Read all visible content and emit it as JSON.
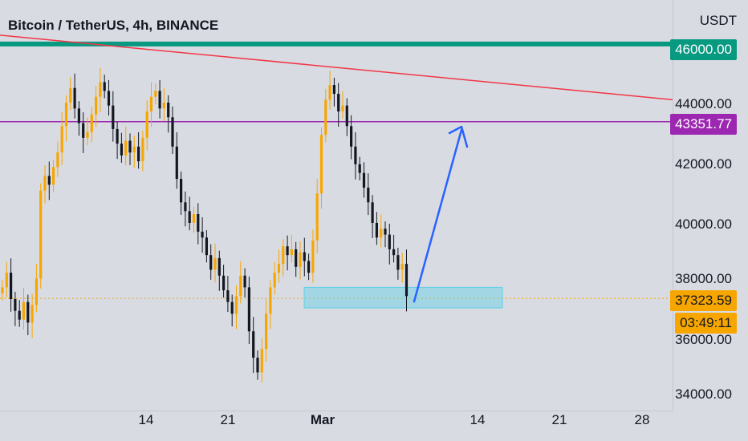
{
  "header": {
    "title": "Bitcoin / TetherUS, 4h, BINANCE",
    "currency": "USDT"
  },
  "price_axis": {
    "ticks": [
      "46000.00",
      "44000.00",
      "42000.00",
      "40000.00",
      "38000.00",
      "36000.00",
      "34000.00"
    ]
  },
  "time_axis": {
    "ticks": [
      "14",
      "21",
      "Mar",
      "14",
      "21",
      "28"
    ]
  },
  "price_tags": {
    "resistance": "46000.00",
    "level": "43351.77",
    "last_price": "37323.59",
    "countdown": "03:49:11"
  },
  "colors": {
    "background": "#d9dbe2",
    "candle_up": "#f7a600",
    "candle_down": "#131722",
    "resistance_line": "#089981",
    "level_line": "#9c27b0",
    "trend_line": "#f23645",
    "support_zone": "#5fd0e6",
    "projection_arrow": "#2962ff"
  },
  "chart_data": {
    "type": "candlestick",
    "title": "Bitcoin / TetherUS, 4h, BINANCE",
    "ylabel": "USDT",
    "ylim": [
      33500,
      47500
    ],
    "x_ticks": [
      "14",
      "21",
      "Mar",
      "14",
      "21",
      "28"
    ],
    "horizontal_levels": [
      {
        "price": 46000,
        "color": "#089981"
      },
      {
        "price": 43351.77,
        "color": "#9c27b0"
      },
      {
        "price": 37323.59,
        "color": "#f7a600",
        "style": "dotted"
      }
    ],
    "trend_line": {
      "from_price": 46300,
      "to_price": 44100,
      "color": "#f23645"
    },
    "support_zone": {
      "price_low": 37000,
      "price_high": 37700
    },
    "closes": [
      37700,
      38200,
      37300,
      36900,
      36600,
      37200,
      36500,
      37100,
      38000,
      41000,
      41500,
      41200,
      41800,
      42300,
      43200,
      44000,
      44500,
      43800,
      43300,
      42800,
      43000,
      43600,
      44200,
      44700,
      44400,
      43900,
      43100,
      42600,
      42200,
      42700,
      42300,
      42500,
      42000,
      42800,
      43700,
      44200,
      44400,
      43800,
      44000,
      43500,
      42500,
      41400,
      40600,
      40300,
      39900,
      40200,
      39600,
      39400,
      38800,
      38300,
      38700,
      38100,
      37600,
      37200,
      36800,
      37400,
      38100,
      37700,
      36200,
      35300,
      34800,
      35600,
      36800,
      37700,
      38200,
      38500,
      39100,
      38800,
      39000,
      38400,
      38900,
      38600,
      38200,
      39300,
      40900,
      42900,
      44100,
      44600,
      44300,
      43700,
      43900,
      43200,
      42500,
      41900,
      41600,
      41100,
      40600,
      39900,
      39400,
      39700,
      39500,
      39000,
      38800,
      38300,
      38500,
      37400
    ]
  }
}
